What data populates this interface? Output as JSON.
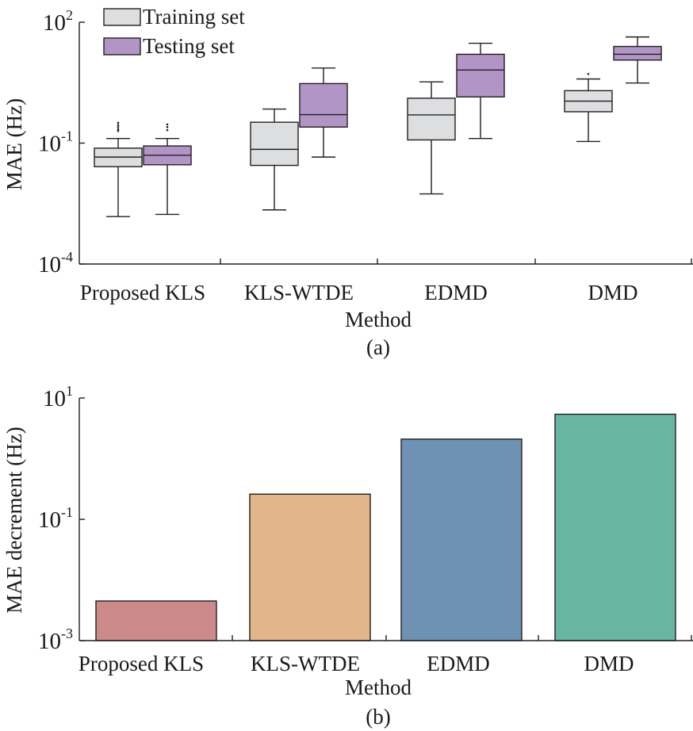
{
  "chart_data": [
    {
      "type": "box",
      "panel_label": "(a)",
      "xlabel": "Method",
      "ylabel": "MAE (Hz)",
      "yscale": "log",
      "ylim": [
        0.0001,
        100
      ],
      "yticks": [
        {
          "base": "10",
          "exp": "-4",
          "value": 0.0001
        },
        {
          "base": "10",
          "exp": "-1",
          "value": 0.1
        },
        {
          "base": "10",
          "exp": "2",
          "value": 100
        }
      ],
      "categories": [
        "Proposed KLS",
        "KLS-WTDE",
        "EDMD",
        "DMD"
      ],
      "legend": {
        "position": "top-left"
      },
      "series": [
        {
          "name": "Training set",
          "color": "#dcdee0",
          "boxes": [
            {
              "min": 0.0015,
              "q1": 0.026,
              "median": 0.045,
              "q3": 0.075,
              "max": 0.13,
              "outliers": [
                0.2,
                0.22,
                0.25,
                0.28,
                0.32
              ]
            },
            {
              "min": 0.0022,
              "q1": 0.028,
              "median": 0.07,
              "q3": 0.33,
              "max": 0.7
            },
            {
              "min": 0.0055,
              "q1": 0.12,
              "median": 0.5,
              "q3": 1.3,
              "max": 3.3
            },
            {
              "min": 0.11,
              "q1": 0.6,
              "median": 1.1,
              "q3": 2.0,
              "max": 3.9,
              "outliers": [
                5.2
              ]
            }
          ]
        },
        {
          "name": "Testing set",
          "color": "#b295c7",
          "boxes": [
            {
              "min": 0.0017,
              "q1": 0.029,
              "median": 0.05,
              "q3": 0.085,
              "max": 0.13,
              "outliers": [
                0.21,
                0.25,
                0.29
              ]
            },
            {
              "min": 0.045,
              "q1": 0.25,
              "median": 0.51,
              "q3": 3.0,
              "max": 7.3
            },
            {
              "min": 0.13,
              "q1": 1.4,
              "median": 6.5,
              "q3": 16,
              "max": 30
            },
            {
              "min": 3.1,
              "q1": 11.5,
              "median": 16,
              "q3": 25,
              "max": 43
            }
          ]
        }
      ]
    },
    {
      "type": "bar",
      "panel_label": "(b)",
      "xlabel": "Method",
      "ylabel": "MAE decrement (Hz)",
      "yscale": "log",
      "ylim": [
        0.001,
        10
      ],
      "yticks": [
        {
          "base": "10",
          "exp": "-3",
          "value": 0.001
        },
        {
          "base": "10",
          "exp": "-1",
          "value": 0.1
        },
        {
          "base": "10",
          "exp": "1",
          "value": 10
        }
      ],
      "categories": [
        "Proposed KLS",
        "KLS-WTDE",
        "EDMD",
        "DMD"
      ],
      "values": [
        0.0045,
        0.26,
        2.1,
        5.4
      ],
      "colors": [
        "#cc8b8a",
        "#e2b689",
        "#6d92b3",
        "#67b5a3"
      ]
    }
  ]
}
